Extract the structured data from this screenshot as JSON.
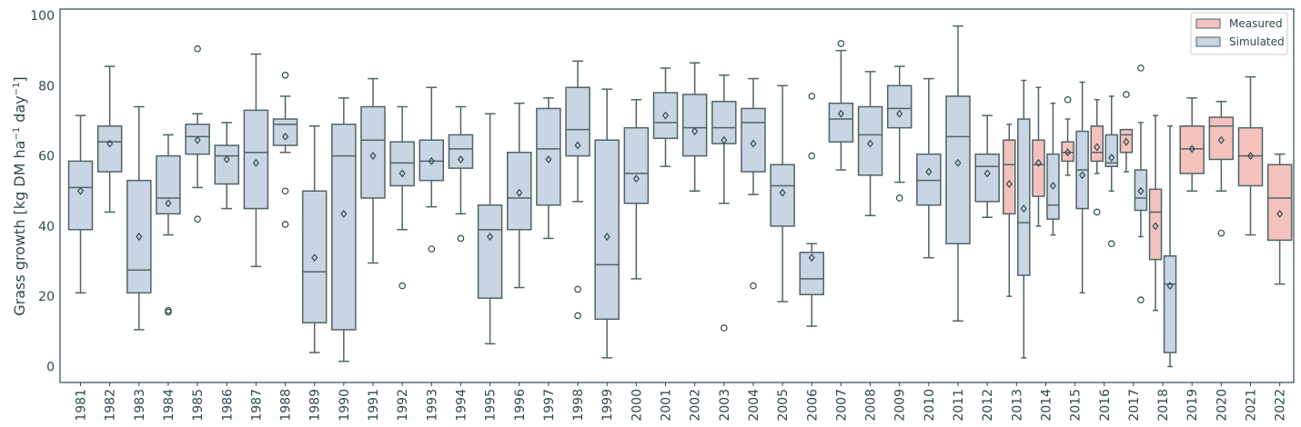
{
  "chart_data": {
    "type": "box",
    "ylabel_main": "Grass growth [kg DM ha",
    "ylabel_sup1": "−1",
    "ylabel_mid": " day",
    "ylabel_sup2": "−1",
    "ylabel_end": "]",
    "ylim": [
      -5,
      101
    ],
    "yticks": [
      0,
      20,
      40,
      60,
      80,
      100
    ],
    "grid": false,
    "legend_position": "top-right",
    "categories": [
      "1981",
      "1982",
      "1983",
      "1984",
      "1985",
      "1986",
      "1987",
      "1988",
      "1989",
      "1990",
      "1991",
      "1992",
      "1993",
      "1994",
      "1995",
      "1996",
      "1997",
      "1998",
      "1999",
      "2000",
      "2001",
      "2002",
      "2003",
      "2004",
      "2005",
      "2006",
      "2007",
      "2008",
      "2009",
      "2010",
      "2011",
      "2012",
      "2013",
      "2014",
      "2015",
      "2016",
      "2017",
      "2018",
      "2019",
      "2020",
      "2021",
      "2022"
    ],
    "series": [
      {
        "name": "Measured",
        "color": "#f4c2bd",
        "edge": "#4f6466",
        "boxes": [
          {
            "year": "2013",
            "wlo": 20,
            "q1": 43.5,
            "med": 57.5,
            "q3": 64.5,
            "whi": 69,
            "mean": 52,
            "fliers": []
          },
          {
            "year": "2014",
            "wlo": 40,
            "q1": 48.5,
            "med": 57.5,
            "q3": 64.5,
            "whi": 79.5,
            "mean": 58,
            "fliers": []
          },
          {
            "year": "2015",
            "wlo": 54.5,
            "q1": 58.5,
            "med": 61,
            "q3": 64,
            "whi": 70.5,
            "mean": 61,
            "fliers": [
              76
            ]
          },
          {
            "year": "2016",
            "wlo": 55,
            "q1": 58.5,
            "med": 61,
            "q3": 68.5,
            "whi": 76,
            "mean": 62.5,
            "fliers": [
              44
            ]
          },
          {
            "year": "2017",
            "wlo": 55.5,
            "q1": 61,
            "med": 66,
            "q3": 67.5,
            "whi": 67.5,
            "mean": 64,
            "fliers": [
              77.5
            ]
          },
          {
            "year": "2018",
            "wlo": 16,
            "q1": 30.5,
            "med": 44,
            "q3": 50.5,
            "whi": 71.5,
            "mean": 40,
            "fliers": []
          },
          {
            "year": "2019",
            "wlo": 50,
            "q1": 55,
            "med": 62,
            "q3": 68.5,
            "whi": 76.5,
            "mean": 62,
            "fliers": []
          },
          {
            "year": "2020",
            "wlo": 50,
            "q1": 59,
            "med": 68.5,
            "q3": 71,
            "whi": 75.5,
            "mean": 64.5,
            "fliers": [
              38
            ]
          },
          {
            "year": "2021",
            "wlo": 37.5,
            "q1": 51.5,
            "med": 60,
            "q3": 68,
            "whi": 82.5,
            "mean": 60,
            "fliers": []
          },
          {
            "year": "2022",
            "wlo": 23.5,
            "q1": 36,
            "med": 48,
            "q3": 57.5,
            "whi": 60.5,
            "mean": 43.5,
            "fliers": []
          }
        ]
      },
      {
        "name": "Simulated",
        "color": "#c9d5e2",
        "edge": "#4f6466",
        "boxes": [
          {
            "year": "1981",
            "wlo": 21,
            "q1": 39,
            "med": 51,
            "q3": 58.5,
            "whi": 71.5,
            "mean": 50,
            "fliers": []
          },
          {
            "year": "1982",
            "wlo": 44,
            "q1": 55.5,
            "med": 64,
            "q3": 68.5,
            "whi": 85.5,
            "mean": 63.5,
            "fliers": []
          },
          {
            "year": "1983",
            "wlo": 10.5,
            "q1": 21,
            "med": 27.5,
            "q3": 53,
            "whi": 74,
            "mean": 37,
            "fliers": []
          },
          {
            "year": "1984",
            "wlo": 37.5,
            "q1": 43.5,
            "med": 48,
            "q3": 60,
            "whi": 66,
            "mean": 46.5,
            "fliers": [
              16,
              15.5
            ]
          },
          {
            "year": "1985",
            "wlo": 51,
            "q1": 60.5,
            "med": 65.5,
            "q3": 69,
            "whi": 72,
            "mean": 64.5,
            "fliers": [
              90.5,
              42
            ]
          },
          {
            "year": "1986",
            "wlo": 45,
            "q1": 52,
            "med": 60,
            "q3": 63,
            "whi": 69.5,
            "mean": 59,
            "fliers": []
          },
          {
            "year": "1987",
            "wlo": 28.5,
            "q1": 45,
            "med": 61,
            "q3": 73,
            "whi": 89,
            "mean": 58,
            "fliers": []
          },
          {
            "year": "1988",
            "wlo": 61,
            "q1": 63,
            "med": 69,
            "q3": 70.5,
            "whi": 77,
            "mean": 65.5,
            "fliers": [
              83,
              50,
              40.5
            ]
          },
          {
            "year": "1989",
            "wlo": 4,
            "q1": 12.5,
            "med": 27,
            "q3": 50,
            "whi": 68.5,
            "mean": 31,
            "fliers": []
          },
          {
            "year": "1990",
            "wlo": 1.5,
            "q1": 10.5,
            "med": 60,
            "q3": 69,
            "whi": 76.5,
            "mean": 43.5,
            "fliers": []
          },
          {
            "year": "1991",
            "wlo": 29.5,
            "q1": 48,
            "med": 64.5,
            "q3": 74,
            "whi": 82,
            "mean": 60,
            "fliers": []
          },
          {
            "year": "1992",
            "wlo": 39,
            "q1": 51.5,
            "med": 58,
            "q3": 64,
            "whi": 74,
            "mean": 55,
            "fliers": [
              23
            ]
          },
          {
            "year": "1993",
            "wlo": 45.5,
            "q1": 53,
            "med": 58.5,
            "q3": 64.5,
            "whi": 79.5,
            "mean": 58.5,
            "fliers": [
              33.5
            ]
          },
          {
            "year": "1994",
            "wlo": 43.5,
            "q1": 56.5,
            "med": 62,
            "q3": 66,
            "whi": 74,
            "mean": 59,
            "fliers": [
              36.5
            ]
          },
          {
            "year": "1995",
            "wlo": 6.5,
            "q1": 19.5,
            "med": 39,
            "q3": 46,
            "whi": 72,
            "mean": 37,
            "fliers": []
          },
          {
            "year": "1996",
            "wlo": 22.5,
            "q1": 39,
            "med": 48,
            "q3": 61,
            "whi": 75,
            "mean": 49.5,
            "fliers": []
          },
          {
            "year": "1997",
            "wlo": 36.5,
            "q1": 46,
            "med": 62,
            "q3": 73.5,
            "whi": 76.5,
            "mean": 59,
            "fliers": []
          },
          {
            "year": "1998",
            "wlo": 47,
            "q1": 60,
            "med": 67.5,
            "q3": 79.5,
            "whi": 87,
            "mean": 63,
            "fliers": [
              22,
              14.5
            ]
          },
          {
            "year": "1999",
            "wlo": 2.5,
            "q1": 13.5,
            "med": 29,
            "q3": 64.5,
            "whi": 79,
            "mean": 37,
            "fliers": []
          },
          {
            "year": "2000",
            "wlo": 25,
            "q1": 46.5,
            "med": 55,
            "q3": 68,
            "whi": 76,
            "mean": 53.5,
            "fliers": []
          },
          {
            "year": "2001",
            "wlo": 57,
            "q1": 65,
            "med": 69.5,
            "q3": 78,
            "whi": 85,
            "mean": 71.5,
            "fliers": []
          },
          {
            "year": "2002",
            "wlo": 50,
            "q1": 60,
            "med": 68,
            "q3": 77.5,
            "whi": 86.5,
            "mean": 67,
            "fliers": []
          },
          {
            "year": "2003",
            "wlo": 46.5,
            "q1": 63.5,
            "med": 68,
            "q3": 75.5,
            "whi": 83,
            "mean": 64.5,
            "fliers": [
              11
            ]
          },
          {
            "year": "2004",
            "wlo": 49,
            "q1": 55.5,
            "med": 69.5,
            "q3": 73.5,
            "whi": 82,
            "mean": 63.5,
            "fliers": [
              23
            ]
          },
          {
            "year": "2005",
            "wlo": 18.5,
            "q1": 40,
            "med": 51.5,
            "q3": 57.5,
            "whi": 80,
            "mean": 49.5,
            "fliers": []
          },
          {
            "year": "2006",
            "wlo": 11.5,
            "q1": 20.5,
            "med": 25,
            "q3": 32.5,
            "whi": 35,
            "mean": 31,
            "fliers": [
              77,
              60
            ]
          },
          {
            "year": "2007",
            "wlo": 56,
            "q1": 64,
            "med": 70.5,
            "q3": 75,
            "whi": 90,
            "mean": 72,
            "fliers": [
              92
            ]
          },
          {
            "year": "2008",
            "wlo": 43,
            "q1": 54.5,
            "med": 66,
            "q3": 74,
            "whi": 84,
            "mean": 63.5,
            "fliers": []
          },
          {
            "year": "2009",
            "wlo": 52.5,
            "q1": 68,
            "med": 73.5,
            "q3": 80,
            "whi": 85.5,
            "mean": 72,
            "fliers": [
              48
            ]
          },
          {
            "year": "2010",
            "wlo": 31,
            "q1": 46,
            "med": 53,
            "q3": 60.5,
            "whi": 82,
            "mean": 55.5,
            "fliers": []
          },
          {
            "year": "2011",
            "wlo": 13,
            "q1": 35,
            "med": 65.5,
            "q3": 77,
            "whi": 97,
            "mean": 58,
            "fliers": []
          },
          {
            "year": "2012",
            "wlo": 42.5,
            "q1": 47,
            "med": 57,
            "q3": 60.5,
            "whi": 71.5,
            "mean": 55,
            "fliers": []
          },
          {
            "year": "2013",
            "wlo": 2.5,
            "q1": 26,
            "med": 41,
            "q3": 70.5,
            "whi": 81.5,
            "mean": 45,
            "fliers": []
          },
          {
            "year": "2014",
            "wlo": 37.5,
            "q1": 42,
            "med": 46,
            "q3": 60.5,
            "whi": 75,
            "mean": 51.5,
            "fliers": []
          },
          {
            "year": "2015",
            "wlo": 21,
            "q1": 45,
            "med": 56,
            "q3": 67,
            "whi": 81,
            "mean": 54.5,
            "fliers": []
          },
          {
            "year": "2016",
            "wlo": 50,
            "q1": 57,
            "med": 58,
            "q3": 66,
            "whi": 77,
            "mean": 59.5,
            "fliers": [
              35
            ]
          },
          {
            "year": "2017",
            "wlo": 37,
            "q1": 44.5,
            "med": 48,
            "q3": 56,
            "whi": 69.5,
            "mean": 50,
            "fliers": [
              85,
              19
            ]
          },
          {
            "year": "2018",
            "wlo": 0,
            "q1": 4,
            "med": 23.5,
            "q3": 31.5,
            "whi": 68.5,
            "mean": 23,
            "fliers": []
          }
        ]
      }
    ]
  }
}
